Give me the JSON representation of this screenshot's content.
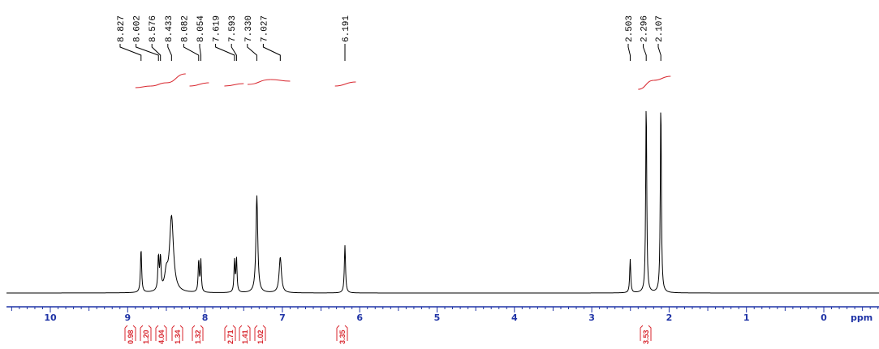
{
  "chart_data": {
    "type": "line",
    "title": "",
    "xlabel": "ppm",
    "ylabel": "",
    "xlim": [
      10.55,
      -0.75
    ],
    "x_reversed": true,
    "x_ticks": [
      10,
      9,
      8,
      7,
      6,
      5,
      4,
      3,
      2,
      1,
      0
    ],
    "x_tick_labels": [
      "10",
      "9",
      "8",
      "7",
      "6",
      "5",
      "4",
      "3",
      "2",
      "1",
      "0"
    ],
    "grid": false,
    "legend": "none",
    "peak_labels": [
      "8.827",
      "8.602",
      "8.576",
      "8.433",
      "8.082",
      "8.054",
      "7.619",
      "7.593",
      "7.330",
      "7.027",
      "6.191",
      "2.503",
      "2.296",
      "2.107"
    ],
    "peaks": [
      {
        "ppm": 8.827,
        "height": 0.22,
        "width": 0.018
      },
      {
        "ppm": 8.602,
        "height": 0.17,
        "width": 0.018
      },
      {
        "ppm": 8.576,
        "height": 0.16,
        "width": 0.018
      },
      {
        "ppm": 8.5,
        "height": 0.08,
        "width": 0.05
      },
      {
        "ppm": 8.433,
        "height": 0.38,
        "width": 0.06
      },
      {
        "ppm": 8.082,
        "height": 0.16,
        "width": 0.016
      },
      {
        "ppm": 8.054,
        "height": 0.16,
        "width": 0.016
      },
      {
        "ppm": 7.619,
        "height": 0.16,
        "width": 0.016
      },
      {
        "ppm": 7.593,
        "height": 0.17,
        "width": 0.016
      },
      {
        "ppm": 7.33,
        "height": 0.49,
        "width": 0.028
      },
      {
        "ppm": 7.027,
        "height": 0.18,
        "width": 0.035
      },
      {
        "ppm": 6.191,
        "height": 0.24,
        "width": 0.018
      },
      {
        "ppm": 2.503,
        "height": 0.17,
        "width": 0.016
      },
      {
        "ppm": 2.296,
        "height": 0.97,
        "width": 0.016
      },
      {
        "ppm": 2.107,
        "height": 0.97,
        "width": 0.016
      }
    ],
    "integrals": [
      {
        "from": 8.9,
        "to": 8.7,
        "value": "0.98"
      },
      {
        "from": 8.7,
        "to": 8.5,
        "value": "1.20"
      },
      {
        "from": 8.5,
        "to": 8.25,
        "value": "4.04"
      },
      {
        "from": 8.2,
        "to": 7.95,
        "value": "1.34"
      },
      {
        "from": 7.75,
        "to": 7.5,
        "value": "1.32"
      },
      {
        "from": 7.45,
        "to": 7.15,
        "value": "2.71"
      },
      {
        "from": 7.15,
        "to": 6.9,
        "value": "1.41"
      },
      {
        "from": 6.32,
        "to": 6.05,
        "value": "1.02"
      },
      {
        "from": 2.4,
        "to": 2.2,
        "value": "3.35"
      },
      {
        "from": 2.2,
        "to": 1.98,
        "value": "3.53"
      }
    ],
    "colors": {
      "spectrum": "#000000",
      "integral_curve": "#d8262e",
      "axis": "#1f33a6",
      "integral_label": "#d8262e"
    }
  }
}
